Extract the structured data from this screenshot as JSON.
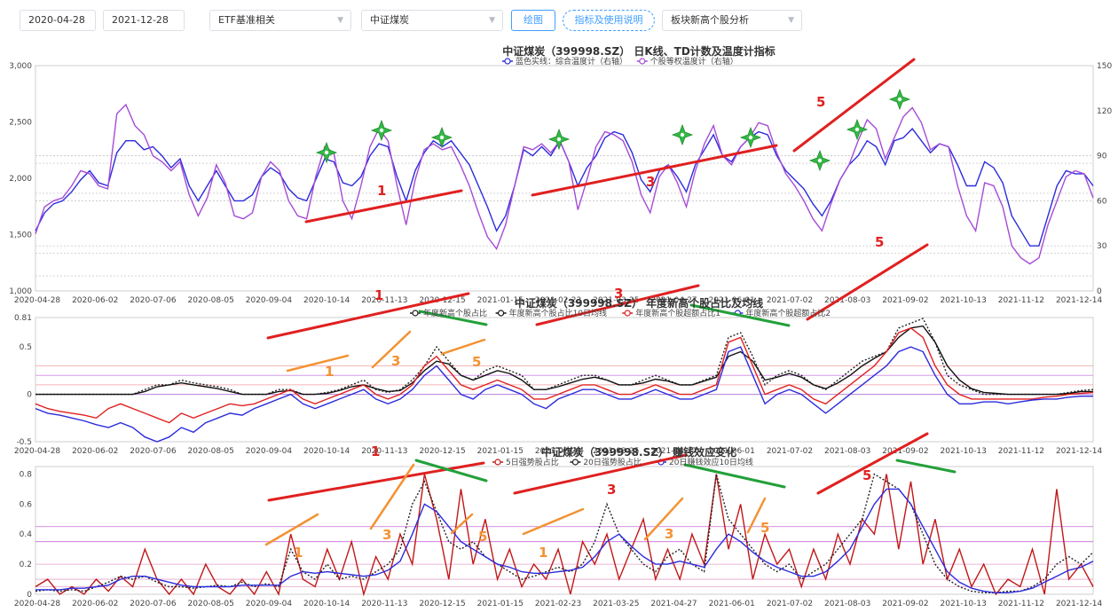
{
  "toolbar": {
    "start_date": "2020-04-28",
    "end_date": "2021-12-28",
    "category_select": "ETF基准相关",
    "index_select": "中证煤炭",
    "draw_button": "绘图",
    "help_button": "指标及使用说明",
    "analysis_select": "板块新高个股分析"
  },
  "colors": {
    "accent": "#409eff",
    "red": "#e02020",
    "green": "#23a03a",
    "orange": "#f39233",
    "blue": "#2b2bdc",
    "purple": "#a64bd6"
  },
  "chart_data": [
    {
      "type": "line",
      "title": "中证煤炭（399998.SZ） 日K线、TD计数及温度计指标",
      "legend": [
        "蓝色实线：综合温度计（右轴）",
        "个股等权温度计（右轴）"
      ],
      "x_ticks": [
        "2020-04-28",
        "2020-06-02",
        "2020-07-06",
        "2020-08-05",
        "2020-09-04",
        "2020-10-14",
        "2020-11-13",
        "2020-12-15",
        "2021-01-15",
        "2021-02-23",
        "2021-03-25",
        "2021-04-27",
        "2021-06-01",
        "2021-07-02",
        "2021-08-03",
        "2021-09-02",
        "2021-10-13",
        "2021-11-12",
        "2021-12-14"
      ],
      "y_left_ticks": [
        "1,000",
        "1,500",
        "2,000",
        "2,500",
        "3,000"
      ],
      "y_right_ticks": [
        "0",
        "30",
        "60",
        "90",
        "120",
        "150"
      ],
      "ylim_left": [
        1000,
        3000
      ],
      "ylim_right": [
        0,
        150
      ],
      "series": [
        {
          "name": "蓝色实线：综合温度计（右轴）",
          "color": "#2b2bdc",
          "values": [
            40,
            52,
            58,
            60,
            66,
            74,
            80,
            72,
            70,
            92,
            100,
            100,
            94,
            96,
            90,
            82,
            88,
            70,
            60,
            70,
            80,
            70,
            60,
            60,
            64,
            76,
            82,
            78,
            68,
            62,
            60,
            74,
            88,
            86,
            72,
            70,
            76,
            90,
            98,
            96,
            76,
            60,
            80,
            92,
            100,
            96,
            100,
            92,
            84,
            70,
            56,
            40,
            50,
            70,
            94,
            90,
            96,
            90,
            100,
            86,
            70,
            82,
            90,
            102,
            106,
            104,
            92,
            74,
            66,
            80,
            84,
            76,
            66,
            84,
            94,
            104,
            90,
            86,
            96,
            102,
            106,
            104,
            90,
            80,
            74,
            68,
            58,
            50,
            60,
            74,
            84,
            90,
            100,
            96,
            84,
            100,
            102,
            108,
            100,
            92,
            98,
            96,
            84,
            70,
            70,
            86,
            82,
            72,
            50,
            40,
            30,
            30,
            50,
            70,
            80,
            78,
            78,
            70
          ]
        },
        {
          "name": "个股等权温度计（右轴）",
          "color": "#a64bd6",
          "values": [
            38,
            56,
            60,
            62,
            70,
            80,
            78,
            70,
            68,
            118,
            124,
            110,
            104,
            90,
            86,
            80,
            86,
            64,
            50,
            62,
            84,
            72,
            50,
            48,
            52,
            76,
            86,
            80,
            60,
            50,
            48,
            76,
            96,
            92,
            60,
            48,
            70,
            96,
            108,
            100,
            70,
            44,
            74,
            94,
            98,
            94,
            96,
            84,
            70,
            52,
            36,
            28,
            44,
            70,
            96,
            94,
            98,
            92,
            100,
            86,
            54,
            74,
            96,
            106,
            104,
            100,
            86,
            64,
            52,
            76,
            84,
            72,
            56,
            80,
            98,
            110,
            90,
            84,
            96,
            102,
            112,
            110,
            92,
            78,
            70,
            60,
            48,
            40,
            58,
            74,
            84,
            100,
            114,
            108,
            88,
            102,
            116,
            122,
            112,
            94,
            98,
            96,
            70,
            50,
            40,
            72,
            70,
            56,
            30,
            22,
            18,
            22,
            44,
            60,
            76,
            80,
            78,
            62
          ]
        }
      ],
      "annotations": [
        "1",
        "3",
        "5"
      ]
    },
    {
      "type": "line",
      "title": "中证煤炭（399998.SZ） 年度新高个股占比及均线",
      "legend": [
        "年度新高个股占比",
        "年度新高个股占比10日均线",
        "年度新高个股超额占比1",
        "年度新高个股超额占比2"
      ],
      "y_ticks": [
        "-0.5",
        "0",
        "0.5",
        "0.81"
      ],
      "ylim": [
        -0.5,
        0.81
      ],
      "x_ticks": [
        "2020-04-28",
        "2020-06-02",
        "2020-07-06",
        "2020-08-05",
        "2020-09-04",
        "2020-10-14",
        "2020-11-13",
        "2020-12-15",
        "2021-01-15",
        "2021-02-23",
        "2021-03-25",
        "2021-04-27",
        "2021-06-01",
        "2021-07-02",
        "2021-08-03",
        "2021-09-02",
        "2021-10-13",
        "2021-11-12",
        "2021-12-14"
      ],
      "series": [
        {
          "name": "年度新高个股占比",
          "color": "#222222",
          "dashed": true,
          "values": [
            0,
            0,
            0,
            0,
            0,
            0,
            0,
            0,
            0,
            0.05,
            0.1,
            0.1,
            0.15,
            0.12,
            0.1,
            0.08,
            0.05,
            0,
            0,
            0,
            0.05,
            0.05,
            0,
            0,
            0.02,
            0.05,
            0.1,
            0.15,
            0.05,
            0.02,
            0.05,
            0.15,
            0.3,
            0.5,
            0.35,
            0.2,
            0.15,
            0.25,
            0.3,
            0.25,
            0.2,
            0.05,
            0.05,
            0.1,
            0.15,
            0.2,
            0.2,
            0.15,
            0.1,
            0.1,
            0.15,
            0.2,
            0.15,
            0.1,
            0.1,
            0.15,
            0.2,
            0.6,
            0.65,
            0.4,
            0.1,
            0.2,
            0.25,
            0.2,
            0.1,
            0.05,
            0.15,
            0.25,
            0.35,
            0.4,
            0.45,
            0.7,
            0.75,
            0.8,
            0.55,
            0.2,
            0.1,
            0.05,
            0,
            0,
            0,
            0,
            0,
            0,
            0,
            0.02,
            0.04,
            0.05
          ]
        },
        {
          "name": "年度新高个股占比10日均线",
          "color": "#111111",
          "values": [
            0,
            0,
            0,
            0,
            0,
            0,
            0,
            0,
            0,
            0.03,
            0.08,
            0.1,
            0.12,
            0.1,
            0.08,
            0.06,
            0.03,
            0,
            0,
            0,
            0.03,
            0.04,
            0,
            0,
            0.01,
            0.04,
            0.08,
            0.1,
            0.06,
            0.03,
            0.04,
            0.12,
            0.25,
            0.35,
            0.32,
            0.2,
            0.15,
            0.2,
            0.25,
            0.22,
            0.15,
            0.05,
            0.05,
            0.08,
            0.12,
            0.16,
            0.18,
            0.15,
            0.1,
            0.1,
            0.12,
            0.16,
            0.14,
            0.1,
            0.1,
            0.14,
            0.18,
            0.4,
            0.45,
            0.35,
            0.15,
            0.18,
            0.22,
            0.18,
            0.1,
            0.06,
            0.12,
            0.2,
            0.3,
            0.38,
            0.45,
            0.6,
            0.7,
            0.72,
            0.55,
            0.3,
            0.15,
            0.06,
            0.02,
            0.01,
            0,
            0,
            0,
            0,
            0,
            0.01,
            0.03,
            0.03
          ]
        },
        {
          "name": "年度新高个股超额占比1",
          "color": "#e02020",
          "values": [
            -0.1,
            -0.15,
            -0.18,
            -0.2,
            -0.22,
            -0.25,
            -0.15,
            -0.1,
            -0.15,
            -0.2,
            -0.25,
            -0.3,
            -0.2,
            -0.25,
            -0.2,
            -0.15,
            -0.1,
            -0.12,
            -0.1,
            -0.05,
            0,
            0.05,
            -0.05,
            -0.1,
            -0.05,
            0,
            0.05,
            0.1,
            0,
            -0.05,
            0,
            0.1,
            0.3,
            0.4,
            0.25,
            0.1,
            0.05,
            0.1,
            0.15,
            0.1,
            0.05,
            -0.05,
            -0.05,
            0,
            0.05,
            0.1,
            0.1,
            0.05,
            0,
            0,
            0.05,
            0.1,
            0.05,
            0,
            0,
            0.05,
            0.1,
            0.55,
            0.6,
            0.3,
            0,
            0.05,
            0.1,
            0.05,
            -0.05,
            -0.1,
            0,
            0.1,
            0.2,
            0.3,
            0.45,
            0.65,
            0.7,
            0.6,
            0.3,
            0.1,
            0,
            -0.05,
            -0.05,
            -0.05,
            -0.05,
            -0.05,
            -0.05,
            -0.03,
            -0.02,
            0,
            0.01,
            0.02
          ]
        },
        {
          "name": "年度新高个股超额占比2",
          "color": "#2b2bdc",
          "values": [
            -0.15,
            -0.2,
            -0.22,
            -0.25,
            -0.28,
            -0.32,
            -0.35,
            -0.3,
            -0.35,
            -0.45,
            -0.5,
            -0.45,
            -0.35,
            -0.4,
            -0.3,
            -0.25,
            -0.2,
            -0.22,
            -0.15,
            -0.1,
            -0.05,
            0,
            -0.1,
            -0.15,
            -0.1,
            -0.05,
            0,
            0.05,
            -0.05,
            -0.1,
            -0.05,
            0.05,
            0.2,
            0.3,
            0.15,
            0,
            -0.05,
            0.05,
            0.1,
            0.05,
            0,
            -0.1,
            -0.15,
            -0.05,
            0,
            0.05,
            0.05,
            0,
            -0.05,
            -0.05,
            0,
            0.05,
            0,
            -0.05,
            -0.05,
            0,
            0.05,
            0.45,
            0.5,
            0.2,
            -0.1,
            0,
            0.05,
            0,
            -0.1,
            -0.2,
            -0.1,
            0,
            0.1,
            0.2,
            0.3,
            0.45,
            0.5,
            0.45,
            0.2,
            0,
            -0.1,
            -0.1,
            -0.08,
            -0.08,
            -0.1,
            -0.08,
            -0.06,
            -0.05,
            -0.05,
            -0.03,
            -0.02,
            -0.02
          ]
        }
      ],
      "annotations": [
        "1",
        "3",
        "5",
        "1",
        "3",
        "5"
      ]
    },
    {
      "type": "line",
      "title": "中证煤炭（399998.SZ） 赚钱效应变化",
      "legend": [
        "5日强势股占比",
        "20日强势股占比",
        "20日赚钱效应10日均线"
      ],
      "y_ticks": [
        "0",
        "0.2",
        "0.4",
        "0.6",
        "0.8"
      ],
      "ylim": [
        0,
        0.85
      ],
      "x_ticks": [
        "2020-04-28",
        "2020-06-02",
        "2020-07-06",
        "2020-08-05",
        "2020-09-04",
        "2020-10-14",
        "2020-11-13",
        "2020-12-15",
        "2021-01-15",
        "2021-02-23",
        "2021-03-25",
        "2021-04-27",
        "2021-06-01",
        "2021-07-02",
        "2021-08-03",
        "2021-09-02",
        "2021-10-13",
        "2021-11-12",
        "2021-12-14"
      ],
      "series": [
        {
          "name": "5日强势股占比",
          "color": "#c01818",
          "values": [
            0.05,
            0.1,
            0,
            0.05,
            0,
            0.1,
            0.02,
            0.12,
            0.05,
            0.3,
            0.1,
            0,
            0.1,
            0,
            0.2,
            0.05,
            0,
            0.1,
            0,
            0.15,
            0,
            0.4,
            0.1,
            0.05,
            0.3,
            0.1,
            0.35,
            0,
            0.25,
            0.1,
            0.4,
            0.2,
            0.8,
            0.5,
            0.1,
            0.7,
            0.2,
            0.5,
            0.1,
            0.3,
            0.05,
            0.2,
            0.1,
            0.3,
            0,
            0.35,
            0.2,
            0.4,
            0.1,
            0.3,
            0.5,
            0.1,
            0.3,
            0.1,
            0.4,
            0.2,
            0.8,
            0.3,
            0.6,
            0.1,
            0.4,
            0.2,
            0.3,
            0.05,
            0.3,
            0.1,
            0.4,
            0.2,
            0.5,
            0.4,
            0.8,
            0.3,
            0.75,
            0.2,
            0.5,
            0.1,
            0.3,
            0.05,
            0.2,
            0,
            0.1,
            0.05,
            0.3,
            0,
            0.7,
            0.1,
            0.2,
            0.05
          ]
        },
        {
          "name": "20日强势股占比",
          "color": "#222222",
          "dashed": true,
          "values": [
            0.02,
            0.03,
            0.02,
            0.03,
            0.02,
            0.05,
            0.08,
            0.12,
            0.1,
            0.12,
            0.08,
            0.05,
            0.05,
            0.04,
            0.05,
            0.06,
            0.05,
            0.08,
            0.05,
            0.07,
            0.05,
            0.3,
            0.15,
            0.1,
            0.2,
            0.1,
            0.12,
            0.1,
            0.15,
            0.2,
            0.3,
            0.6,
            0.75,
            0.55,
            0.35,
            0.3,
            0.35,
            0.25,
            0.2,
            0.15,
            0.1,
            0.12,
            0.15,
            0.18,
            0.15,
            0.2,
            0.35,
            0.6,
            0.4,
            0.3,
            0.2,
            0.15,
            0.25,
            0.3,
            0.2,
            0.15,
            0.8,
            0.5,
            0.4,
            0.3,
            0.2,
            0.15,
            0.2,
            0.1,
            0.15,
            0.2,
            0.3,
            0.4,
            0.5,
            0.8,
            0.75,
            0.7,
            0.6,
            0.4,
            0.2,
            0.1,
            0.05,
            0.02,
            0.01,
            0.01,
            0.02,
            0.02,
            0.05,
            0.1,
            0.2,
            0.25,
            0.2,
            0.28
          ]
        },
        {
          "name": "20日赚钱效应10日均线",
          "color": "#2b2bdc",
          "values": [
            0.03,
            0.03,
            0.03,
            0.04,
            0.04,
            0.05,
            0.06,
            0.1,
            0.12,
            0.12,
            0.1,
            0.08,
            0.06,
            0.05,
            0.05,
            0.05,
            0.05,
            0.06,
            0.06,
            0.06,
            0.06,
            0.12,
            0.15,
            0.14,
            0.15,
            0.14,
            0.13,
            0.12,
            0.13,
            0.16,
            0.22,
            0.4,
            0.6,
            0.55,
            0.45,
            0.35,
            0.3,
            0.25,
            0.2,
            0.18,
            0.15,
            0.14,
            0.14,
            0.15,
            0.16,
            0.18,
            0.25,
            0.35,
            0.4,
            0.32,
            0.25,
            0.2,
            0.2,
            0.22,
            0.2,
            0.18,
            0.3,
            0.4,
            0.35,
            0.28,
            0.22,
            0.18,
            0.15,
            0.12,
            0.12,
            0.15,
            0.22,
            0.3,
            0.45,
            0.6,
            0.7,
            0.7,
            0.6,
            0.45,
            0.3,
            0.15,
            0.08,
            0.04,
            0.02,
            0.01,
            0.01,
            0.02,
            0.04,
            0.08,
            0.12,
            0.16,
            0.18,
            0.22
          ]
        }
      ],
      "annotations": [
        "1",
        "3",
        "5",
        "1",
        "3",
        "5",
        "1",
        "3",
        "5"
      ]
    }
  ]
}
